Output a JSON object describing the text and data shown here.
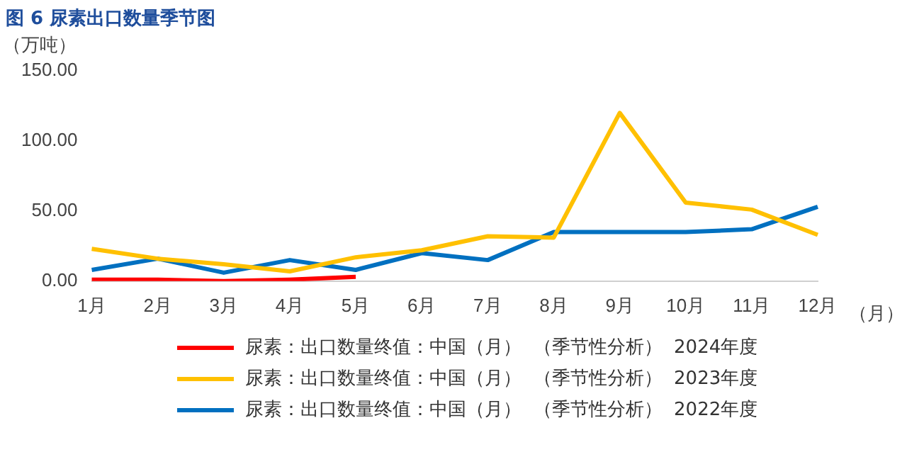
{
  "chart_data": {
    "type": "line",
    "title": "图 6 尿素出口数量季节图",
    "ylabel": "（万吨）",
    "xlabel": "（月）",
    "categories": [
      "1月",
      "2月",
      "3月",
      "4月",
      "5月",
      "6月",
      "7月",
      "8月",
      "9月",
      "10月",
      "11月",
      "12月"
    ],
    "series": [
      {
        "name": "尿素：出口数量终值：中国（月）  （季节性分析）  2024年度",
        "color": "#ff0000",
        "values": [
          1,
          1,
          0,
          1,
          3,
          null,
          null,
          null,
          null,
          null,
          null,
          null
        ]
      },
      {
        "name": "尿素：出口数量终值：中国（月）  （季节性分析）  2023年度",
        "color": "#ffc000",
        "values": [
          23,
          16,
          12,
          7,
          17,
          22,
          32,
          31,
          120,
          56,
          51,
          33
        ]
      },
      {
        "name": "尿素：出口数量终值：中国（月）  （季节性分析）  2022年度",
        "color": "#0070c0",
        "values": [
          8,
          16,
          6,
          15,
          8,
          20,
          15,
          35,
          35,
          35,
          37,
          53
        ]
      }
    ],
    "ylim": [
      0,
      150
    ],
    "yticks": [
      {
        "value": 0,
        "label": "0.00"
      },
      {
        "value": 50,
        "label": "50.00"
      },
      {
        "value": 100,
        "label": "100.00"
      },
      {
        "value": 150,
        "label": "150.00"
      }
    ],
    "grid": false,
    "legend": "bottom",
    "marker": "none",
    "line_style": "solid"
  }
}
